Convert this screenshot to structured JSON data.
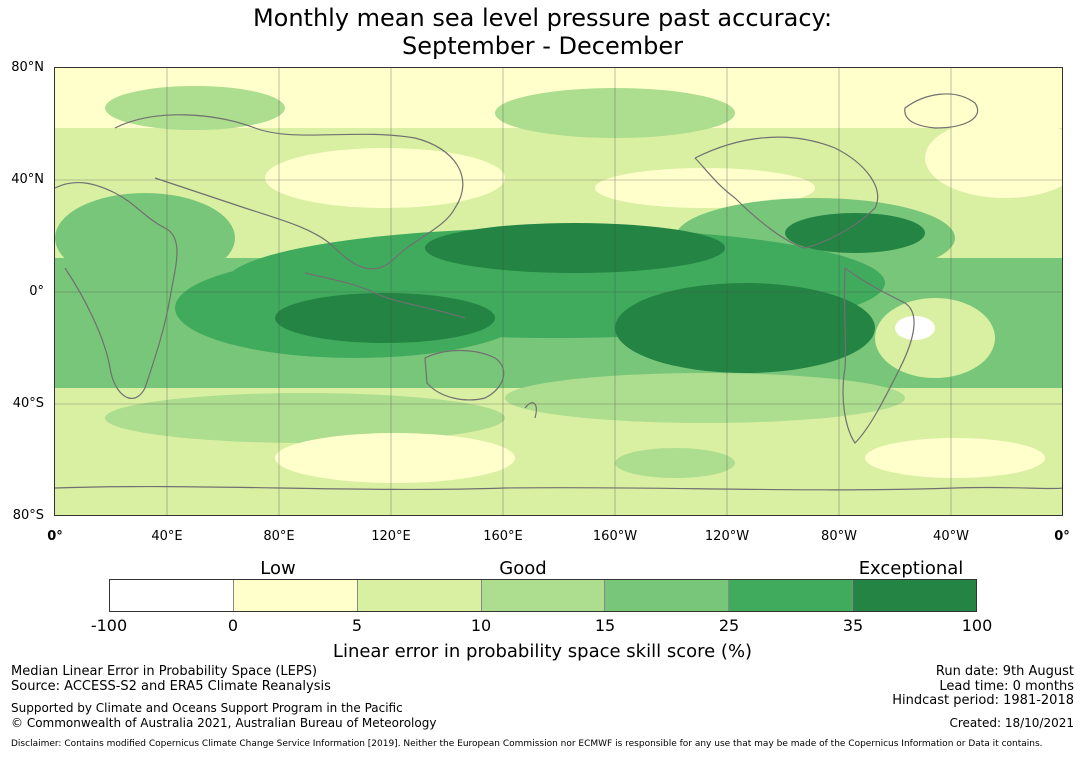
{
  "title_line1": "Monthly mean sea level pressure past accuracy:",
  "title_line2": "September - December",
  "lat_labels": [
    "80°N",
    "40°N",
    "0°",
    "40°S",
    "80°S"
  ],
  "lon_labels": [
    "0°",
    "40°E",
    "80°E",
    "120°E",
    "160°E",
    "160°W",
    "120°W",
    "80°W",
    "40°W",
    "0°"
  ],
  "category_labels": [
    "Low",
    "Good",
    "Exceptional"
  ],
  "colorbar": {
    "ticks": [
      "-100",
      "0",
      "5",
      "10",
      "15",
      "25",
      "35",
      "100"
    ],
    "colors": [
      "#ffffff",
      "#ffffcc",
      "#d9f0a3",
      "#addd8e",
      "#78c679",
      "#41ab5d",
      "#238443"
    ],
    "title": "Linear error in probability space skill score (%)"
  },
  "footer": {
    "left_line1": "Median Linear Error in Probability Space (LEPS)",
    "left_line2": "Source: ACCESS-S2 and ERA5 Climate Reanalysis",
    "left_line3": "Supported by Climate and Oceans Support Program in the Pacific",
    "left_line4": "© Commonwealth of Australia 2021, Australian Bureau of Meteorology",
    "run_date": "Run date: 9th August",
    "lead_time": "Lead time: 0 months",
    "hindcast": "Hindcast period: 1981-2018",
    "created": "Created: 18/10/2021",
    "disclaimer": "Disclaimer: Contains modified Copernicus Climate Change Service Information [2019]. Neither the European Commission nor ECMWF is responsible for any use that may be made of the Copernicus Information or Data it contains."
  }
}
